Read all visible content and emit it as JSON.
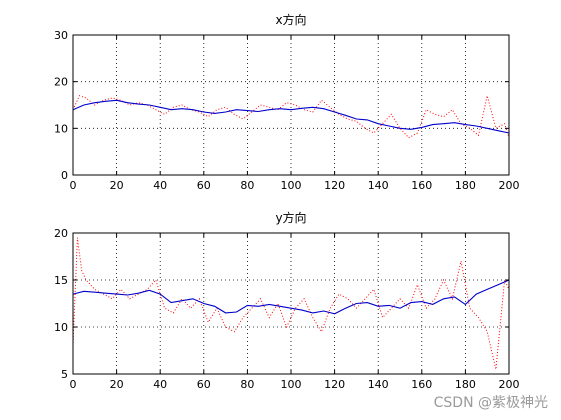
{
  "watermark": "CSDN @紫极神光",
  "chart_data": [
    {
      "type": "line",
      "title": "x方向",
      "xlim": [
        0,
        200
      ],
      "ylim": [
        0,
        30
      ],
      "xticks": [
        0,
        20,
        40,
        60,
        80,
        100,
        120,
        140,
        160,
        180,
        200
      ],
      "yticks": [
        0,
        10,
        20,
        30
      ],
      "grid": "dotted",
      "series": [
        {
          "style": "dotted",
          "color": "#ff0000",
          "x": [
            0,
            3,
            6,
            10,
            14,
            18,
            22,
            26,
            30,
            34,
            38,
            42,
            46,
            50,
            54,
            58,
            62,
            66,
            70,
            74,
            78,
            82,
            86,
            90,
            94,
            98,
            102,
            106,
            110,
            114,
            118,
            122,
            126,
            130,
            134,
            138,
            142,
            146,
            150,
            154,
            158,
            162,
            166,
            170,
            174,
            178,
            182,
            186,
            190,
            194,
            198,
            200
          ],
          "y": [
            14,
            17,
            16.5,
            15,
            16,
            16.5,
            16,
            15,
            15.5,
            15,
            14,
            13,
            14.5,
            15,
            14,
            13.5,
            12.5,
            14,
            14.5,
            13,
            12,
            13.5,
            15,
            14.5,
            14,
            15.5,
            15,
            14,
            13.5,
            16,
            14.5,
            13,
            12,
            11.5,
            10,
            9,
            11,
            13,
            10,
            8,
            9,
            14,
            13,
            12.5,
            14,
            11,
            10,
            8.5,
            17,
            10,
            11,
            8
          ]
        },
        {
          "style": "solid",
          "color": "#0000cc",
          "x": [
            0,
            5,
            10,
            15,
            20,
            25,
            30,
            35,
            40,
            45,
            50,
            55,
            60,
            65,
            70,
            75,
            80,
            85,
            90,
            95,
            100,
            105,
            110,
            115,
            120,
            125,
            130,
            135,
            140,
            145,
            150,
            155,
            160,
            165,
            170,
            175,
            180,
            185,
            190,
            195,
            200
          ],
          "y": [
            14,
            15,
            15.5,
            15.8,
            16,
            15.5,
            15.2,
            15,
            14.5,
            14,
            14.2,
            14,
            13.5,
            13.2,
            13.5,
            14,
            13.8,
            13.6,
            14,
            14.2,
            14,
            14.3,
            14.5,
            14.2,
            13.5,
            12.8,
            12,
            11.8,
            11,
            10.5,
            10,
            9.8,
            10.2,
            10.8,
            11,
            11.2,
            10.8,
            10.5,
            10,
            9.5,
            9
          ]
        }
      ]
    },
    {
      "type": "line",
      "title": "y方向",
      "xlim": [
        0,
        200
      ],
      "ylim": [
        5,
        20
      ],
      "xticks": [
        0,
        20,
        40,
        60,
        80,
        100,
        120,
        140,
        160,
        180,
        200
      ],
      "yticks": [
        5,
        10,
        15,
        20
      ],
      "grid": "dotted",
      "series": [
        {
          "style": "dotted",
          "color": "#ff0000",
          "x": [
            0,
            2,
            4,
            6,
            10,
            14,
            18,
            22,
            26,
            30,
            34,
            38,
            42,
            46,
            50,
            54,
            58,
            62,
            66,
            70,
            74,
            78,
            82,
            86,
            90,
            94,
            98,
            102,
            106,
            110,
            114,
            118,
            122,
            126,
            130,
            134,
            138,
            142,
            146,
            150,
            154,
            158,
            162,
            166,
            170,
            174,
            178,
            182,
            186,
            190,
            194,
            198,
            200
          ],
          "y": [
            8,
            19.5,
            16,
            15,
            14,
            13.5,
            13,
            14,
            13,
            13.5,
            14,
            15,
            12,
            11.5,
            13,
            12,
            13,
            10.5,
            12,
            10,
            9.5,
            11,
            12,
            13,
            11,
            12.5,
            10,
            12,
            13,
            11,
            9.5,
            12,
            13.5,
            13,
            12,
            13,
            14,
            11,
            12,
            13,
            12,
            14.5,
            12,
            13,
            15,
            13,
            17,
            12,
            11,
            9.5,
            5.5,
            15,
            14
          ]
        },
        {
          "style": "solid",
          "color": "#0000cc",
          "x": [
            0,
            5,
            10,
            15,
            20,
            25,
            30,
            35,
            40,
            45,
            50,
            55,
            60,
            65,
            70,
            75,
            80,
            85,
            90,
            95,
            100,
            105,
            110,
            115,
            120,
            125,
            130,
            135,
            140,
            145,
            150,
            155,
            160,
            165,
            170,
            175,
            180,
            185,
            190,
            195,
            200
          ],
          "y": [
            13.5,
            13.8,
            13.7,
            13.6,
            13.5,
            13.4,
            13.6,
            13.9,
            13.5,
            12.6,
            12.8,
            13,
            12.5,
            12.2,
            11.5,
            11.6,
            12.3,
            12.2,
            12.4,
            12.2,
            12,
            11.8,
            11.5,
            11.7,
            11.4,
            12,
            12.5,
            12.6,
            12.2,
            12.3,
            12,
            12.6,
            12.7,
            12.4,
            13,
            13.2,
            12.4,
            13.5,
            14,
            14.5,
            15
          ]
        }
      ]
    }
  ]
}
